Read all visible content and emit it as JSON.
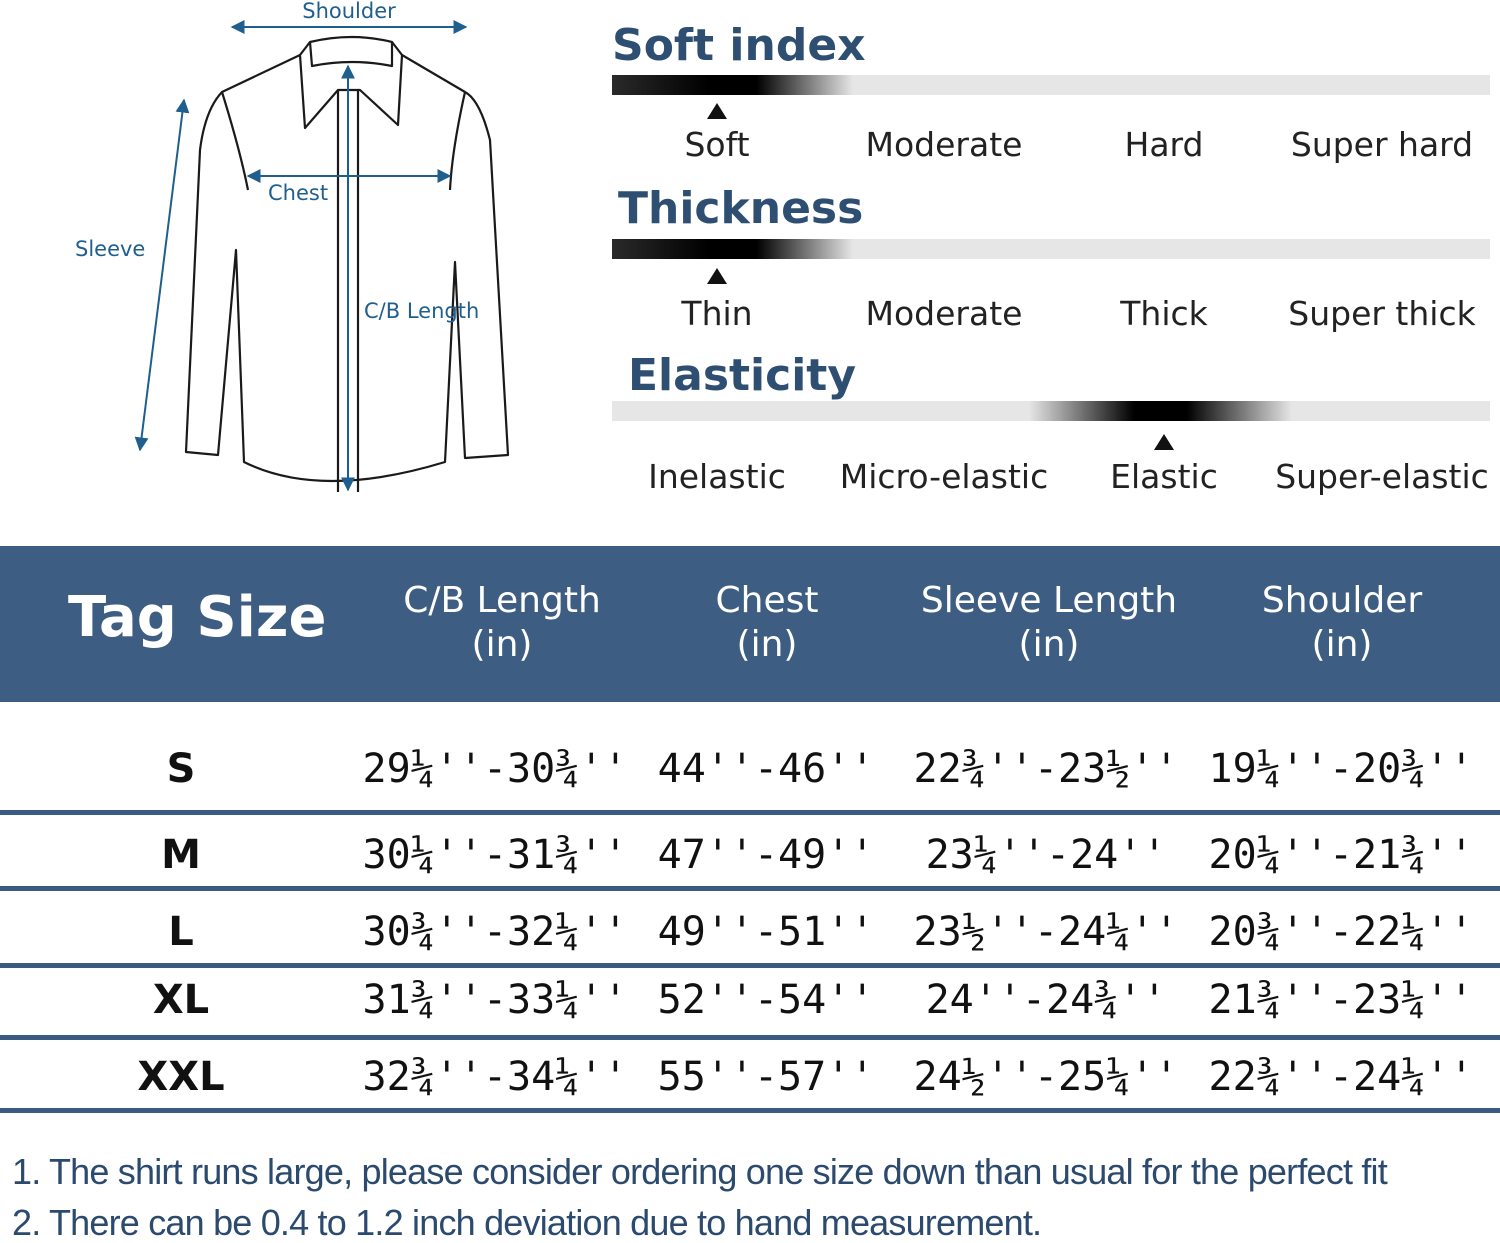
{
  "diagram": {
    "shoulder_label": "Shoulder",
    "chest_label": "Chest",
    "sleeve_label": "Sleeve",
    "length_label": "C/B Length"
  },
  "colors": {
    "accent": "#3d5d82",
    "title_blue": "#2e4f72",
    "measure_blue": "#1f5f8f",
    "note_blue": "#2b4a6e"
  },
  "scales": [
    {
      "title": "Soft index",
      "levels": [
        "Soft",
        "Moderate",
        "Hard",
        "Super hard"
      ],
      "selected_index": 0
    },
    {
      "title": "Thickness",
      "levels": [
        "Thin",
        "Moderate",
        "Thick",
        "Super thick"
      ],
      "selected_index": 0
    },
    {
      "title": "Elasticity",
      "levels": [
        "Inelastic",
        "Micro-elastic",
        "Elastic",
        "Super-elastic"
      ],
      "selected_index": 2
    }
  ],
  "table": {
    "tag_header": "Tag Size",
    "columns": [
      {
        "name": "C/B Length",
        "unit": "(in)"
      },
      {
        "name": "Chest",
        "unit": "(in)"
      },
      {
        "name": "Sleeve Length",
        "unit": "(in)"
      },
      {
        "name": "Shoulder",
        "unit": "(in)"
      }
    ],
    "rows": [
      {
        "size": "S",
        "values": [
          "29¼''-30¾''",
          "44''-46''",
          "22¾''-23½''",
          "19¼''-20¾''"
        ]
      },
      {
        "size": "M",
        "values": [
          "30¼''-31¾''",
          "47''-49''",
          "23¼''-24''",
          "20¼''-21¾''"
        ]
      },
      {
        "size": "L",
        "values": [
          "30¾''-32¼''",
          "49''-51''",
          "23½''-24¼''",
          "20¾''-22¼''"
        ]
      },
      {
        "size": "XL",
        "values": [
          "31¾''-33¼''",
          "52''-54''",
          "24''-24¾''",
          "21¾''-23¼''"
        ]
      },
      {
        "size": "XXL",
        "values": [
          "32¾''-34¼''",
          "55''-57''",
          "24½''-25¼''",
          "22¾''-24¼''"
        ]
      }
    ]
  },
  "notes": [
    "1.  The shirt runs large, please consider ordering one size down than usual for the perfect fit",
    "2. There can be 0.4 to 1.2 inch deviation due to hand measurement."
  ]
}
